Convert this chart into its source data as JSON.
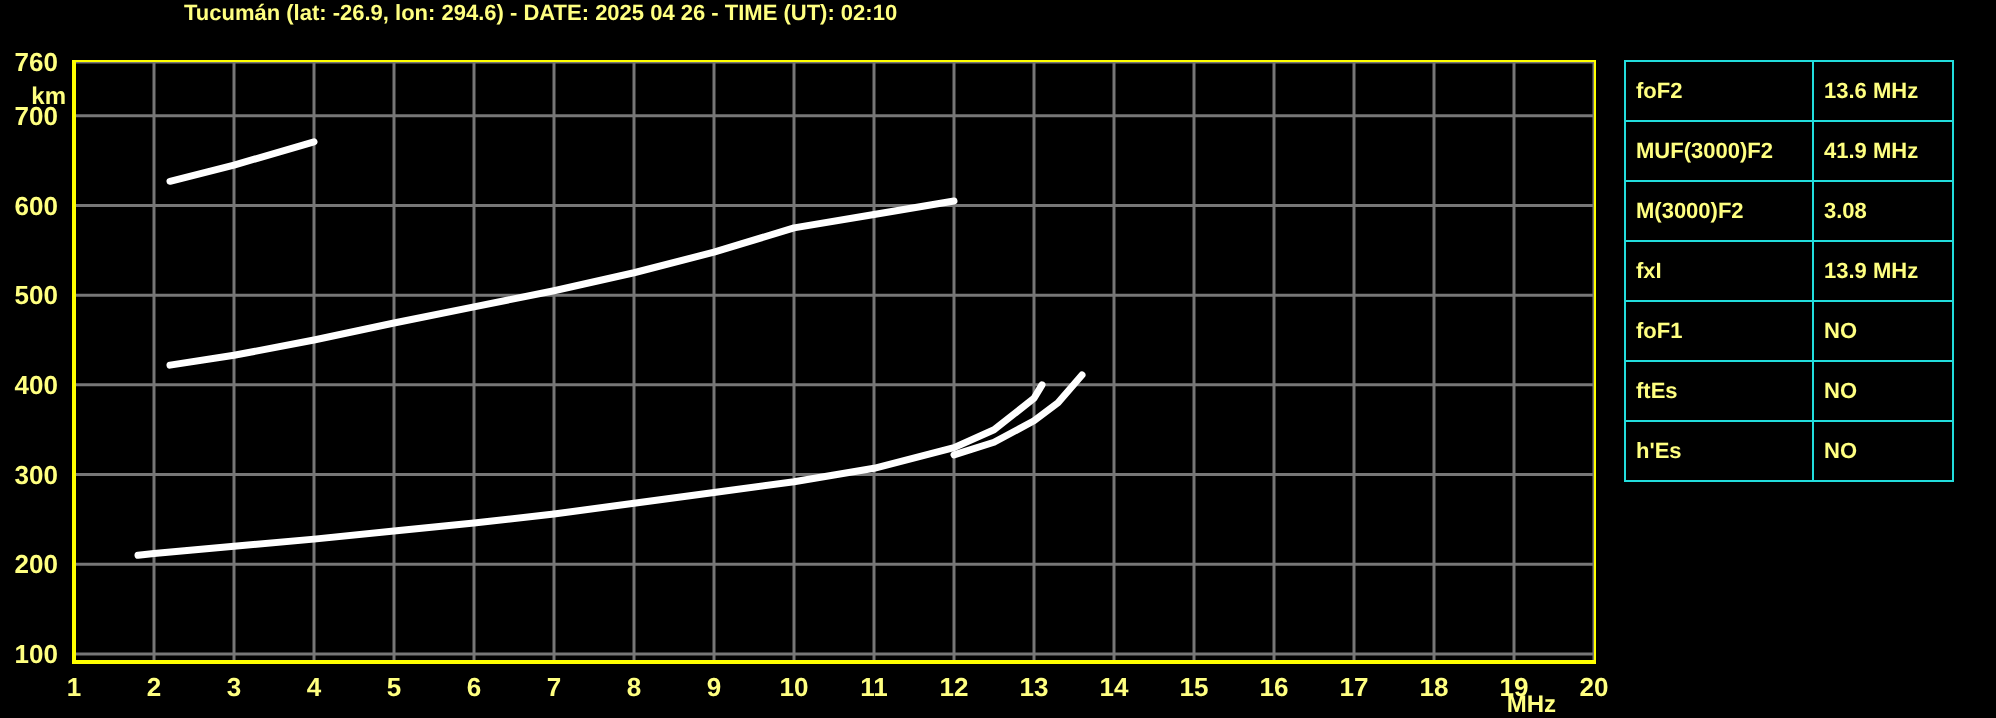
{
  "chart_data": [
    {
      "type": "line",
      "title": "Tucumán (lat: -26.9, lon: 294.6) - DATE: 2025 04 26 - TIME (UT): 02:10",
      "xlabel": "MHz",
      "ylabel": "km",
      "xlim": [
        1,
        20
      ],
      "xticks": [
        1,
        2,
        3,
        4,
        5,
        6,
        7,
        8,
        9,
        10,
        11,
        12,
        13,
        14,
        15,
        16,
        17,
        18,
        19,
        20
      ],
      "ylim": [
        91,
        760
      ],
      "yticks": [
        100,
        200,
        300,
        400,
        500,
        600,
        700,
        760
      ],
      "grid": true,
      "marker": "none",
      "line_style": "solid",
      "series": [
        {
          "color": "#ffffff",
          "x": [
            1.8,
            2,
            3,
            4,
            5,
            6,
            7,
            8,
            9,
            10,
            11,
            12,
            12.5,
            13,
            13.1
          ],
          "values": [
            210,
            212,
            220,
            228,
            237,
            246,
            256,
            268,
            280,
            292,
            307,
            330,
            350,
            385,
            400
          ]
        },
        {
          "color": "#ffffff",
          "x": [
            12,
            12.5,
            13,
            13.3,
            13.6
          ],
          "values": [
            322,
            336,
            360,
            380,
            411
          ]
        },
        {
          "color": "#ffffff",
          "x": [
            2.2,
            3,
            4,
            5,
            6,
            7,
            8,
            9,
            10,
            11,
            12
          ],
          "values": [
            422,
            433,
            450,
            469,
            487,
            505,
            525,
            548,
            575,
            590,
            605
          ]
        },
        {
          "color": "#ffffff",
          "x": [
            2.2,
            3,
            4
          ],
          "values": [
            627,
            645,
            671
          ]
        }
      ]
    },
    {
      "type": "other",
      "categories": [
        "foF2",
        "MUF(3000)F2",
        "M(3000)F2",
        "fxI",
        "foF1",
        "ftEs",
        "h'Es"
      ],
      "value_labels": [
        "13.6 MHz",
        "41.9 MHz",
        "3.08",
        "13.9 MHz",
        "NO",
        "NO",
        "NO"
      ]
    }
  ]
}
